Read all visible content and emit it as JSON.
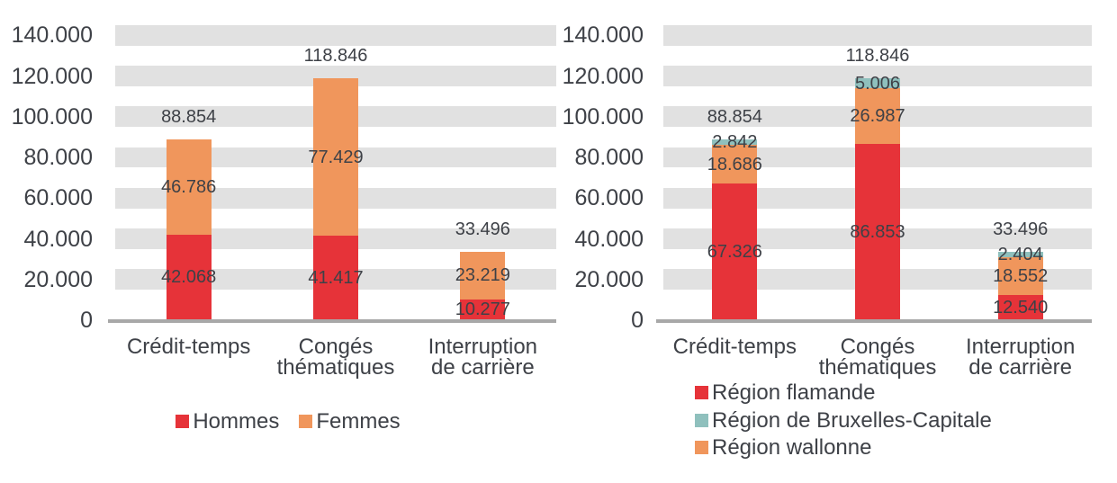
{
  "colors": {
    "red": "#e63339",
    "orange": "#f0965c",
    "teal": "#8fc0bd",
    "band": "#e1e1e1",
    "baseline": "#a8a8a8",
    "text": "#3e4147",
    "background": "#ffffff"
  },
  "axis": {
    "tick_labels": [
      "140.000",
      "120.000",
      "100.000",
      "80.000",
      "60.000",
      "40.000",
      "20.000",
      "0"
    ],
    "tick_values": [
      140000,
      120000,
      100000,
      80000,
      60000,
      40000,
      20000,
      0
    ],
    "max": 145000
  },
  "chart_data": [
    {
      "type": "stacked-bar",
      "position": "left",
      "title": "",
      "xlabel": "",
      "ylabel": "",
      "ylim": [
        0,
        145000
      ],
      "grid": "banded-horizontal",
      "categories": [
        "Crédit-temps",
        "Congés\nthématiques",
        "Interruption\nde carrière"
      ],
      "series": [
        {
          "name": "Hommes",
          "color": "red",
          "values": [
            42068,
            41417,
            10277
          ],
          "value_labels": [
            "42.068",
            "41.417",
            "10.277"
          ]
        },
        {
          "name": "Femmes",
          "color": "orange",
          "values": [
            46786,
            77429,
            23219
          ],
          "value_labels": [
            "46.786",
            "77.429",
            "23.219"
          ]
        }
      ],
      "totals": [
        88854,
        118846,
        33496
      ],
      "total_labels": [
        "88.854",
        "118.846",
        "33.496"
      ],
      "legend": [
        {
          "label": "Hommes",
          "color": "red"
        },
        {
          "label": "Femmes",
          "color": "orange"
        }
      ],
      "legend_position": "bottom-center"
    },
    {
      "type": "stacked-bar",
      "position": "right",
      "title": "",
      "xlabel": "",
      "ylabel": "",
      "ylim": [
        0,
        145000
      ],
      "grid": "banded-horizontal",
      "categories": [
        "Crédit-temps",
        "Congés\nthématiques",
        "Interruption\nde carrière"
      ],
      "series": [
        {
          "name": "Région flamande",
          "color": "red",
          "values": [
            67326,
            86853,
            12540
          ],
          "value_labels": [
            "67.326",
            "86.853",
            "12.540"
          ]
        },
        {
          "name": "Région wallonne",
          "color": "orange",
          "values": [
            18686,
            26987,
            18552
          ],
          "value_labels": [
            "18.686",
            "26.987",
            "18.552"
          ]
        },
        {
          "name": "Région de Bruxelles-Capitale",
          "color": "teal",
          "values": [
            2842,
            5006,
            2404
          ],
          "value_labels": [
            "2.842",
            "5.006",
            "2.404"
          ]
        }
      ],
      "totals": [
        88854,
        118846,
        33496
      ],
      "total_labels": [
        "88.854",
        "118.846",
        "33.496"
      ],
      "legend": [
        {
          "label": "Région flamande",
          "color": "red"
        },
        {
          "label": "Région de Bruxelles-Capitale",
          "color": "teal"
        },
        {
          "label": "Région wallonne",
          "color": "orange"
        }
      ],
      "legend_position": "bottom-left"
    }
  ]
}
